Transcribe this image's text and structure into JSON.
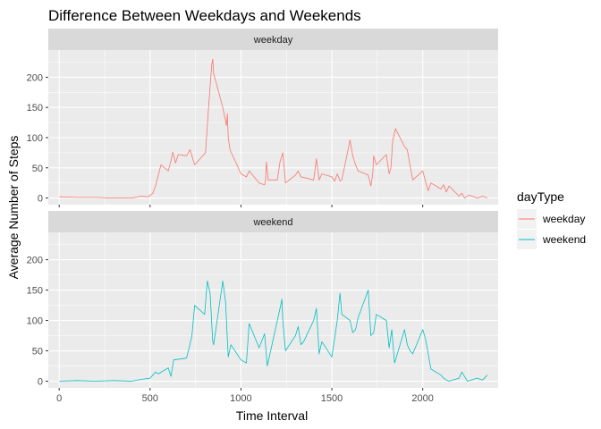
{
  "chart_data": {
    "type": "line",
    "title": "Difference Between Weekdays and Weekends",
    "xlabel": "Time Interval",
    "ylabel": "Average Number of Steps",
    "xlim": [
      -60,
      2415
    ],
    "ylim": [
      -11,
      245
    ],
    "x_ticks": [
      0,
      500,
      1000,
      1500,
      2000
    ],
    "y_ticks": [
      0,
      50,
      100,
      150,
      200
    ],
    "grid": true,
    "legend": {
      "title": "dayType",
      "position": "right"
    },
    "panels": [
      {
        "strip": "weekday",
        "series": "weekday"
      },
      {
        "strip": "weekend",
        "series": "weekend"
      }
    ],
    "series": [
      {
        "name": "weekday",
        "color": "#F8766D",
        "x": [
          0,
          100,
          200,
          300,
          400,
          450,
          490,
          515,
          530,
          545,
          560,
          600,
          615,
          625,
          640,
          655,
          700,
          720,
          745,
          805,
          815,
          830,
          840,
          845,
          850,
          855,
          900,
          920,
          925,
          930,
          940,
          1000,
          1030,
          1045,
          1100,
          1130,
          1135,
          1140,
          1150,
          1200,
          1215,
          1230,
          1245,
          1300,
          1315,
          1330,
          1400,
          1415,
          1430,
          1445,
          1500,
          1515,
          1530,
          1545,
          1555,
          1600,
          1615,
          1630,
          1645,
          1700,
          1715,
          1725,
          1730,
          1745,
          1800,
          1815,
          1825,
          1835,
          1850,
          1900,
          1915,
          1930,
          1945,
          2000,
          2015,
          2030,
          2045,
          2100,
          2115,
          2130,
          2145,
          2200,
          2215,
          2230,
          2255,
          2300,
          2330,
          2355
        ],
        "values": [
          2,
          1,
          1,
          0,
          0,
          3,
          2,
          8,
          20,
          38,
          55,
          45,
          62,
          76,
          58,
          72,
          70,
          80,
          55,
          75,
          120,
          185,
          222,
          230,
          205,
          200,
          150,
          120,
          140,
          100,
          80,
          40,
          35,
          45,
          25,
          22,
          28,
          60,
          30,
          30,
          60,
          75,
          25,
          38,
          45,
          35,
          30,
          65,
          30,
          40,
          35,
          28,
          40,
          28,
          30,
          96,
          70,
          55,
          45,
          38,
          20,
          40,
          70,
          55,
          72,
          40,
          50,
          95,
          115,
          85,
          80,
          55,
          30,
          45,
          28,
          12,
          25,
          15,
          22,
          10,
          20,
          3,
          8,
          0,
          5,
          0,
          3,
          0
        ]
      },
      {
        "name": "weekend",
        "color": "#00BFC4",
        "x": [
          0,
          100,
          200,
          300,
          400,
          450,
          500,
          515,
          530,
          545,
          600,
          615,
          630,
          700,
          715,
          730,
          745,
          800,
          815,
          830,
          845,
          850,
          900,
          915,
          930,
          945,
          1000,
          1030,
          1045,
          1100,
          1130,
          1145,
          1200,
          1215,
          1225,
          1230,
          1245,
          1300,
          1315,
          1330,
          1345,
          1400,
          1415,
          1430,
          1445,
          1500,
          1515,
          1530,
          1545,
          1555,
          1600,
          1615,
          1630,
          1645,
          1700,
          1715,
          1730,
          1745,
          1800,
          1815,
          1830,
          1845,
          1900,
          1915,
          1930,
          1945,
          2000,
          2015,
          2030,
          2045,
          2100,
          2115,
          2130,
          2145,
          2200,
          2215,
          2230,
          2245,
          2300,
          2330,
          2355
        ],
        "values": [
          0,
          1,
          0,
          1,
          0,
          3,
          5,
          10,
          15,
          12,
          22,
          8,
          35,
          38,
          55,
          75,
          125,
          110,
          165,
          145,
          65,
          60,
          165,
          130,
          40,
          60,
          35,
          30,
          95,
          55,
          78,
          25,
          100,
          120,
          135,
          100,
          50,
          75,
          90,
          60,
          65,
          100,
          120,
          45,
          65,
          40,
          70,
          100,
          145,
          110,
          100,
          80,
          85,
          105,
          150,
          75,
          80,
          110,
          100,
          55,
          85,
          30,
          85,
          60,
          50,
          45,
          85,
          70,
          45,
          20,
          10,
          5,
          2,
          0,
          5,
          15,
          8,
          0,
          5,
          2,
          10
        ]
      }
    ]
  }
}
